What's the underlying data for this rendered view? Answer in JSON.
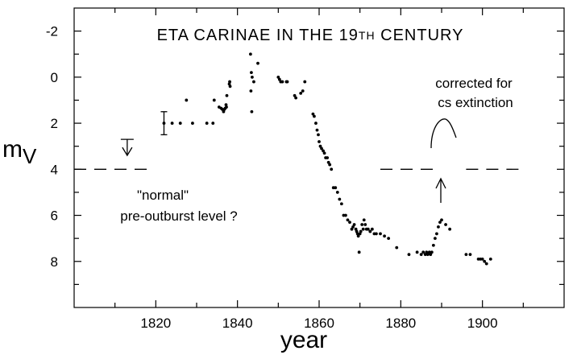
{
  "chart_data": {
    "type": "scatter",
    "title": "ETA CARINAE IN THE 19TH CENTURY",
    "title_main": "ETA CARINAE IN THE 19",
    "title_sup": "TH",
    "title_end": " CENTURY",
    "xlabel": "year",
    "ylabel_main": "m",
    "ylabel_sub": "V",
    "xlim": [
      1800,
      1920
    ],
    "ylim": [
      10,
      -3
    ],
    "y_inverted": true,
    "x_ticks": [
      1820,
      1840,
      1860,
      1880,
      1900
    ],
    "x_tick_labels": [
      "1820",
      "1840",
      "1860",
      "1880",
      "1900"
    ],
    "y_ticks": [
      -2,
      0,
      2,
      4,
      6,
      8
    ],
    "y_tick_labels": [
      "-2",
      "0",
      "2",
      "4",
      "6",
      "8"
    ],
    "grid": false,
    "series": [
      {
        "points": [
          [
            1822.0,
            2.0
          ],
          [
            1824.0,
            2.0
          ],
          [
            1826.0,
            2.0
          ],
          [
            1827.5,
            1.0
          ],
          [
            1829.0,
            2.0
          ],
          [
            1832.5,
            2.0
          ],
          [
            1834.0,
            2.0
          ],
          [
            1834.3,
            1.0
          ],
          [
            1835.5,
            1.3
          ],
          [
            1836.0,
            1.35
          ],
          [
            1836.3,
            1.4
          ],
          [
            1836.6,
            1.5
          ],
          [
            1836.8,
            1.4
          ],
          [
            1837.0,
            1.35
          ],
          [
            1837.2,
            1.2
          ],
          [
            1837.3,
            1.3
          ],
          [
            1837.4,
            0.8
          ],
          [
            1838.0,
            0.3
          ],
          [
            1838.1,
            0.2
          ],
          [
            1838.2,
            0.4
          ],
          [
            1843.2,
            -1.0
          ],
          [
            1843.4,
            -0.2
          ],
          [
            1843.6,
            0.0
          ],
          [
            1843.3,
            0.6
          ],
          [
            1843.5,
            1.5
          ],
          [
            1844.0,
            0.2
          ],
          [
            1845.0,
            -0.6
          ],
          [
            1850.0,
            0.0
          ],
          [
            1850.3,
            0.1
          ],
          [
            1850.6,
            0.2
          ],
          [
            1851.0,
            0.2
          ],
          [
            1852.0,
            0.2
          ],
          [
            1852.2,
            0.2
          ],
          [
            1854.0,
            0.8
          ],
          [
            1854.3,
            0.9
          ],
          [
            1855.5,
            0.7
          ],
          [
            1856.0,
            0.6
          ],
          [
            1856.5,
            0.2
          ],
          [
            1858.5,
            1.6
          ],
          [
            1858.8,
            1.7
          ],
          [
            1859.2,
            2.0
          ],
          [
            1859.5,
            2.3
          ],
          [
            1859.8,
            2.5
          ],
          [
            1860.0,
            2.8
          ],
          [
            1860.3,
            3.0
          ],
          [
            1860.6,
            3.1
          ],
          [
            1861.0,
            3.2
          ],
          [
            1861.3,
            3.3
          ],
          [
            1861.6,
            3.5
          ],
          [
            1862.0,
            3.5
          ],
          [
            1862.3,
            3.7
          ],
          [
            1862.6,
            3.8
          ],
          [
            1863.0,
            4.0
          ],
          [
            1863.5,
            4.8
          ],
          [
            1864.0,
            4.8
          ],
          [
            1864.5,
            5.0
          ],
          [
            1865.0,
            5.3
          ],
          [
            1865.5,
            5.5
          ],
          [
            1866.0,
            6.0
          ],
          [
            1866.5,
            6.0
          ],
          [
            1867.0,
            6.2
          ],
          [
            1867.5,
            6.3
          ],
          [
            1868.0,
            6.6
          ],
          [
            1868.3,
            6.5
          ],
          [
            1868.6,
            6.4
          ],
          [
            1869.0,
            6.6
          ],
          [
            1869.2,
            6.7
          ],
          [
            1869.4,
            6.8
          ],
          [
            1869.6,
            6.9
          ],
          [
            1870.0,
            6.8
          ],
          [
            1870.2,
            6.7
          ],
          [
            1870.5,
            6.4
          ],
          [
            1870.8,
            6.6
          ],
          [
            1871.0,
            6.2
          ],
          [
            1871.3,
            6.4
          ],
          [
            1871.6,
            6.6
          ],
          [
            1872.0,
            6.6
          ],
          [
            1872.5,
            6.7
          ],
          [
            1873.0,
            6.6
          ],
          [
            1873.5,
            6.8
          ],
          [
            1874.0,
            6.8
          ],
          [
            1875.0,
            6.8
          ],
          [
            1876.0,
            6.9
          ],
          [
            1877.0,
            7.0
          ],
          [
            1869.8,
            7.6
          ],
          [
            1879.0,
            7.4
          ],
          [
            1882.0,
            7.7
          ],
          [
            1884.0,
            7.6
          ],
          [
            1885.0,
            7.7
          ],
          [
            1885.5,
            7.6
          ],
          [
            1886.0,
            7.7
          ],
          [
            1886.3,
            7.6
          ],
          [
            1886.6,
            7.7
          ],
          [
            1887.0,
            7.6
          ],
          [
            1887.3,
            7.7
          ],
          [
            1887.6,
            7.6
          ],
          [
            1888.0,
            7.3
          ],
          [
            1888.4,
            7.0
          ],
          [
            1888.8,
            6.8
          ],
          [
            1889.2,
            6.5
          ],
          [
            1889.6,
            6.3
          ],
          [
            1890.0,
            6.2
          ],
          [
            1891.0,
            6.4
          ],
          [
            1892.0,
            6.6
          ],
          [
            1896.0,
            7.7
          ],
          [
            1897.0,
            7.7
          ],
          [
            1899.0,
            7.9
          ],
          [
            1899.5,
            7.9
          ],
          [
            1900.0,
            7.9
          ],
          [
            1900.5,
            8.0
          ],
          [
            1901.0,
            8.1
          ],
          [
            1902.0,
            7.9
          ]
        ]
      }
    ],
    "error_bar": {
      "x": 1822.0,
      "y": 2.0,
      "low": 1.5,
      "high": 2.5
    },
    "upper_limit": {
      "x": 1813,
      "y": 2.7,
      "to": 3.4
    },
    "normal_level": {
      "y": 4.0,
      "segments": [
        [
          1800,
          1818
        ],
        [
          1875,
          1888
        ],
        [
          1896,
          1909
        ]
      ]
    },
    "annotations": {
      "normal_line1": "\"normal\"",
      "normal_line2": "pre-outburst level ?",
      "corrected_line1": "corrected  for",
      "corrected_line2": "cs  extinction"
    }
  }
}
